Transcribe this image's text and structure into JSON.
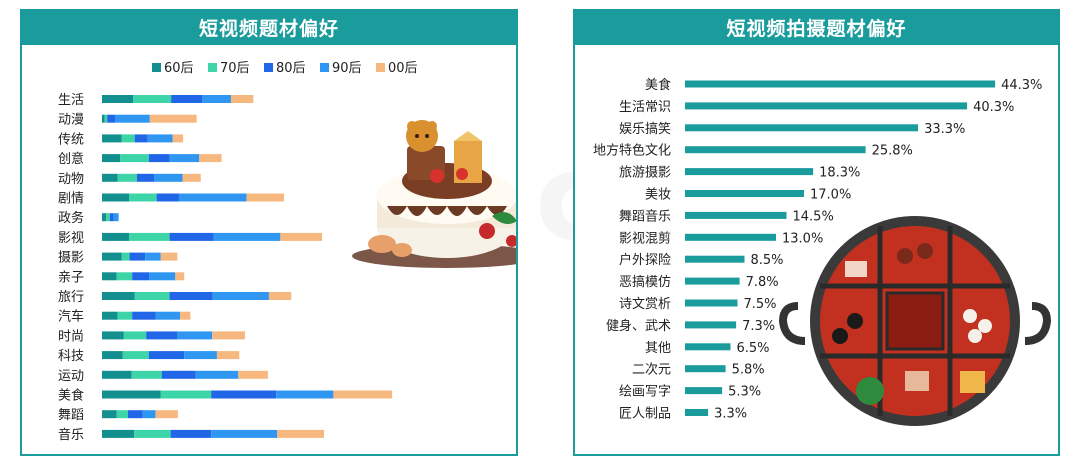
{
  "colors": {
    "accent": "#1a9b9c",
    "series": [
      "#138f8f",
      "#3dd4a8",
      "#2166e6",
      "#2f97f2",
      "#f7b880"
    ]
  },
  "watermark": "MobTech 袤博",
  "chart_data": [
    {
      "type": "bar",
      "orientation": "horizontal",
      "stacked": true,
      "title": "短视频题材偏好",
      "legend_position": "top",
      "categories": [
        "生活",
        "动漫",
        "传统",
        "创意",
        "动物",
        "剧情",
        "政务",
        "影视",
        "摄影",
        "亲子",
        "旅行",
        "汽车",
        "时尚",
        "科技",
        "运动",
        "美食",
        "舞蹈",
        "音乐"
      ],
      "series": [
        {
          "name": "60后",
          "values": [
            6.0,
            0.5,
            3.8,
            3.5,
            3.0,
            5.2,
            0.8,
            5.2,
            3.8,
            2.8,
            6.3,
            3.0,
            4.2,
            4.0,
            5.7,
            11.3,
            2.8,
            6.2
          ]
        },
        {
          "name": "70后",
          "values": [
            7.3,
            0.5,
            2.5,
            5.5,
            3.7,
            5.3,
            0.7,
            7.8,
            1.5,
            3.0,
            6.7,
            2.8,
            4.3,
            5.0,
            5.8,
            9.7,
            2.2,
            7.0
          ]
        },
        {
          "name": "80后",
          "values": [
            6.0,
            1.5,
            2.5,
            4.0,
            3.3,
            4.3,
            0.7,
            8.5,
            3.0,
            3.3,
            8.3,
            4.5,
            6.0,
            6.8,
            6.5,
            12.5,
            2.8,
            7.8
          ]
        },
        {
          "name": "90后",
          "values": [
            5.5,
            6.7,
            4.8,
            5.7,
            5.5,
            13.0,
            1.0,
            12.8,
            3.0,
            5.0,
            10.8,
            4.7,
            6.7,
            6.3,
            8.2,
            11.0,
            2.5,
            12.7
          ]
        },
        {
          "name": "00后",
          "values": [
            4.3,
            9.0,
            2.0,
            4.3,
            3.5,
            7.2,
            0.0,
            8.0,
            3.2,
            1.7,
            4.3,
            2.0,
            6.3,
            4.3,
            5.7,
            11.3,
            4.3,
            9.0
          ]
        }
      ]
    },
    {
      "type": "bar",
      "orientation": "horizontal",
      "title": "短视频拍摄题材偏好",
      "categories": [
        "美食",
        "生活常识",
        "娱乐搞笑",
        "地方特色文化",
        "旅游摄影",
        "美妆",
        "舞蹈音乐",
        "影视混剪",
        "户外探险",
        "恶搞模仿",
        "诗文赏析",
        "健身、武术",
        "其他",
        "二次元",
        "绘画写字",
        "匠人制品"
      ],
      "values": [
        44.3,
        40.3,
        33.3,
        25.8,
        18.3,
        17.0,
        14.5,
        13.0,
        8.5,
        7.8,
        7.5,
        7.3,
        6.5,
        5.8,
        5.3,
        3.3
      ],
      "value_labels": [
        "44.3%",
        "40.3%",
        "33.3%",
        "25.8%",
        "18.3%",
        "17.0%",
        "14.5%",
        "13.0%",
        "8.5%",
        "7.8%",
        "7.5%",
        "7.3%",
        "6.5%",
        "5.8%",
        "5.3%",
        "3.3%"
      ]
    }
  ]
}
